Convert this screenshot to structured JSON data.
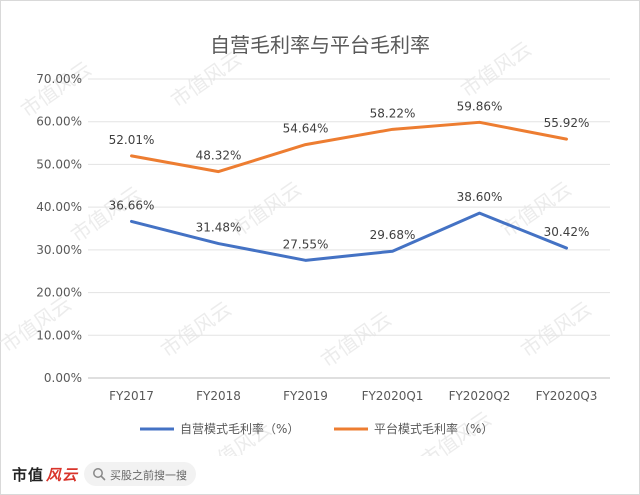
{
  "chart_data": {
    "type": "line",
    "title": "自营毛利率与平台毛利率",
    "categories": [
      "FY2017",
      "FY2018",
      "FY2019",
      "FY2020Q1",
      "FY2020Q2",
      "FY2020Q3"
    ],
    "series": [
      {
        "name": "自营模式毛利率（%）",
        "values": [
          36.66,
          31.48,
          27.55,
          29.68,
          38.6,
          30.42
        ],
        "labels": [
          "36.66%",
          "31.48%",
          "27.55%",
          "29.68%",
          "38.60%",
          "30.42%"
        ],
        "color": "#4472c4"
      },
      {
        "name": "平台模式毛利率（%）",
        "values": [
          52.01,
          48.32,
          54.64,
          58.22,
          59.86,
          55.92
        ],
        "labels": [
          "52.01%",
          "48.32%",
          "54.64%",
          "58.22%",
          "59.86%",
          "55.92%"
        ],
        "color": "#ed7d31"
      }
    ],
    "ylim": [
      0,
      70
    ],
    "yticks": [
      "0.00%",
      "10.00%",
      "20.00%",
      "30.00%",
      "40.00%",
      "50.00%",
      "60.00%",
      "70.00%"
    ],
    "grid": true,
    "legend": "bottom",
    "xlabel": "",
    "ylabel": ""
  },
  "watermark": "市值风云",
  "footer": {
    "brand": "市值",
    "brand_mark": "风云",
    "search_placeholder": "买股之前搜一搜",
    "search_icon": "search-icon"
  }
}
